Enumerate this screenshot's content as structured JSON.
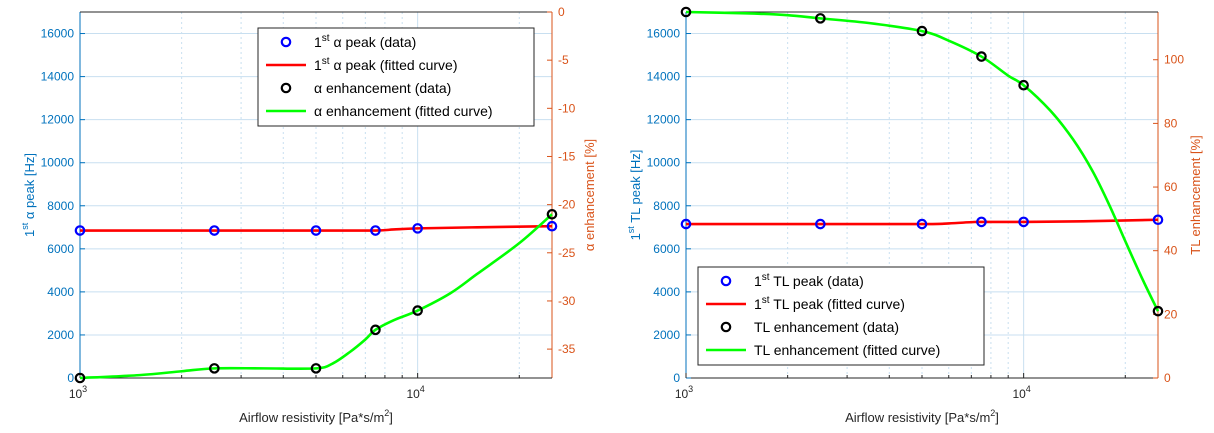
{
  "colors": {
    "left_axis": "#0072bd",
    "right_axis": "#d95319",
    "data_marker_blue": "#0000ff",
    "data_marker_black": "#000000",
    "fit_red": "#ff0000",
    "fit_green": "#00ff00",
    "grid": "#c8dff0"
  },
  "chart_data": [
    {
      "type": "line",
      "xlabel_parts": [
        "Airflow resistivity [Pa*s/m",
        "2",
        "]"
      ],
      "ylabel_left_parts": [
        "1",
        "st",
        " α peak [Hz]"
      ],
      "ylabel_right": "α enhancement [%]",
      "x_scale": "log",
      "xlim": [
        1000,
        25000
      ],
      "x_ticks": [
        {
          "value": 1000,
          "base": "10",
          "exp": "3"
        },
        {
          "value": 10000,
          "base": "10",
          "exp": "4"
        }
      ],
      "ylim_left": [
        0,
        17000
      ],
      "y_ticks_left": [
        0,
        2000,
        4000,
        6000,
        8000,
        10000,
        12000,
        14000,
        16000
      ],
      "ylim_right": [
        -38,
        0
      ],
      "y_ticks_right": [
        -35,
        -30,
        -25,
        -20,
        -15,
        -10,
        -5,
        0
      ],
      "grid": true,
      "legend_position": "top-right",
      "legend": [
        {
          "parts": [
            "1",
            "st",
            " α peak (data)"
          ],
          "kind": "marker",
          "color": "#0000ff"
        },
        {
          "parts": [
            "1",
            "st",
            " α peak (fitted curve)"
          ],
          "kind": "line",
          "color": "#ff0000"
        },
        {
          "parts": [
            "",
            "",
            "α enhancement (data)"
          ],
          "kind": "marker",
          "color": "#000000"
        },
        {
          "parts": [
            "",
            "",
            "α enhancement (fitted curve)"
          ],
          "kind": "line",
          "color": "#00ff00"
        }
      ],
      "series": [
        {
          "kind": "marker",
          "axis": "left",
          "color": "#0000ff",
          "x": [
            1000,
            2500,
            5000,
            7500,
            10000,
            25000
          ],
          "y": [
            6850,
            6850,
            6850,
            6850,
            6950,
            7050
          ]
        },
        {
          "kind": "line",
          "axis": "left",
          "color": "#ff0000",
          "x": [
            1000,
            2500,
            5000,
            7500,
            8500,
            10000,
            15000,
            25000
          ],
          "y": [
            6850,
            6850,
            6850,
            6850,
            6900,
            6950,
            7000,
            7050
          ]
        },
        {
          "kind": "marker",
          "axis": "right",
          "color": "#000000",
          "x": [
            1000,
            2500,
            5000,
            7500,
            10000,
            25000
          ],
          "y": [
            -38,
            -37,
            -37,
            -33,
            -31,
            -21
          ]
        },
        {
          "kind": "line",
          "axis": "right",
          "color": "#00ff00",
          "x": [
            1000,
            1500,
            2000,
            2500,
            3500,
            5000,
            5600,
            6300,
            7000,
            7500,
            8500,
            10000,
            12500,
            15000,
            20000,
            25000
          ],
          "y": [
            -38,
            -37.7,
            -37.3,
            -37,
            -37,
            -37,
            -36.5,
            -35.3,
            -34,
            -33,
            -32,
            -31,
            -29.2,
            -27.2,
            -24,
            -21
          ]
        }
      ]
    },
    {
      "type": "line",
      "xlabel_parts": [
        "Airflow resistivity [Pa*s/m",
        "2",
        "]"
      ],
      "ylabel_left_parts": [
        "1",
        "st",
        " TL peak [Hz]"
      ],
      "ylabel_right": "TL enhancement [%]",
      "x_scale": "log",
      "xlim": [
        1000,
        25000
      ],
      "x_ticks": [
        {
          "value": 1000,
          "base": "10",
          "exp": "3"
        },
        {
          "value": 10000,
          "base": "10",
          "exp": "4"
        }
      ],
      "ylim_left": [
        0,
        17000
      ],
      "y_ticks_left": [
        0,
        2000,
        4000,
        6000,
        8000,
        10000,
        12000,
        14000,
        16000
      ],
      "ylim_right": [
        0,
        115
      ],
      "y_ticks_right": [
        0,
        20,
        40,
        60,
        80,
        100
      ],
      "grid": true,
      "legend_position": "bottom-left",
      "legend": [
        {
          "parts": [
            "1",
            "st",
            " TL peak (data)"
          ],
          "kind": "marker",
          "color": "#0000ff"
        },
        {
          "parts": [
            "1",
            "st",
            " TL peak (fitted curve)"
          ],
          "kind": "line",
          "color": "#ff0000"
        },
        {
          "parts": [
            "",
            "",
            "TL enhancement (data)"
          ],
          "kind": "marker",
          "color": "#000000"
        },
        {
          "parts": [
            "",
            "",
            "TL enhancement (fitted curve)"
          ],
          "kind": "line",
          "color": "#00ff00"
        }
      ],
      "series": [
        {
          "kind": "marker",
          "axis": "left",
          "color": "#0000ff",
          "x": [
            1000,
            2500,
            5000,
            7500,
            10000,
            25000
          ],
          "y": [
            7150,
            7150,
            7150,
            7250,
            7250,
            7350
          ]
        },
        {
          "kind": "line",
          "axis": "left",
          "color": "#ff0000",
          "x": [
            1000,
            2500,
            5000,
            6000,
            7000,
            7500,
            10000,
            15000,
            25000
          ],
          "y": [
            7150,
            7150,
            7150,
            7180,
            7240,
            7250,
            7250,
            7280,
            7350
          ]
        },
        {
          "kind": "marker",
          "axis": "right",
          "color": "#000000",
          "x": [
            1000,
            2500,
            5000,
            7500,
            10000,
            25000
          ],
          "y": [
            115,
            113,
            109,
            101,
            92,
            21
          ]
        },
        {
          "kind": "line",
          "axis": "right",
          "color": "#00ff00",
          "x": [
            1000,
            1500,
            2000,
            2500,
            3500,
            5000,
            6000,
            7500,
            9000,
            10000,
            12000,
            14000,
            16000,
            18000,
            20000,
            22500,
            25000
          ],
          "y": [
            115,
            114.6,
            114,
            113,
            111.5,
            109,
            106,
            101,
            95,
            92,
            84,
            75,
            65,
            54,
            43,
            31,
            21
          ]
        }
      ]
    }
  ]
}
